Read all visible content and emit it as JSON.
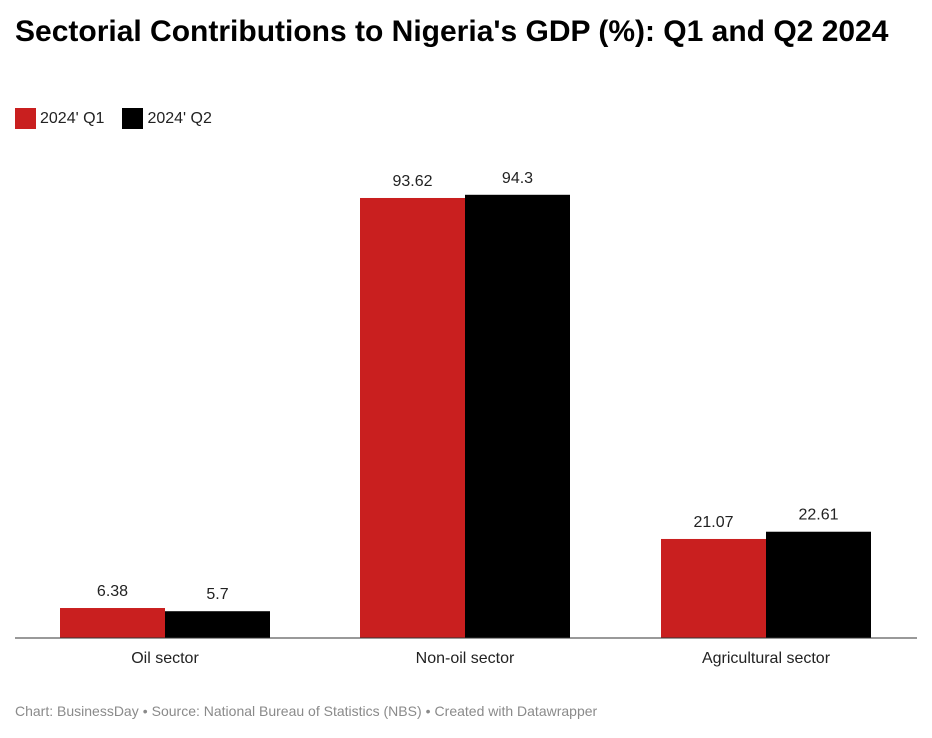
{
  "title": "Sectorial Contributions to Nigeria's GDP (%): Q1 and Q2 2024",
  "legend": {
    "items": [
      {
        "label": "2024' Q1",
        "color": "#c91f1f"
      },
      {
        "label": "2024' Q2",
        "color": "#000000"
      }
    ]
  },
  "chart_data": {
    "type": "bar",
    "categories": [
      "Oil sector",
      "Non-oil sector",
      "Agricultural sector"
    ],
    "series": [
      {
        "name": "2024' Q1",
        "values": [
          6.38,
          93.62,
          21.07
        ],
        "color": "#c91f1f"
      },
      {
        "name": "2024' Q2",
        "values": [
          5.7,
          94.3,
          22.61
        ],
        "color": "#000000"
      }
    ],
    "data_labels": [
      [
        "6.38",
        "93.62",
        "21.07"
      ],
      [
        "5.7",
        "94.3",
        "22.61"
      ]
    ],
    "ylim": [
      0,
      100
    ],
    "grid": false,
    "legend_position": "top-left",
    "xlabel": "",
    "ylabel": ""
  },
  "footer": {
    "chart": "Chart: BusinessDay",
    "source": "Source: National Bureau of Statistics (NBS)",
    "created": "Created with Datawrapper",
    "separator": "•"
  }
}
